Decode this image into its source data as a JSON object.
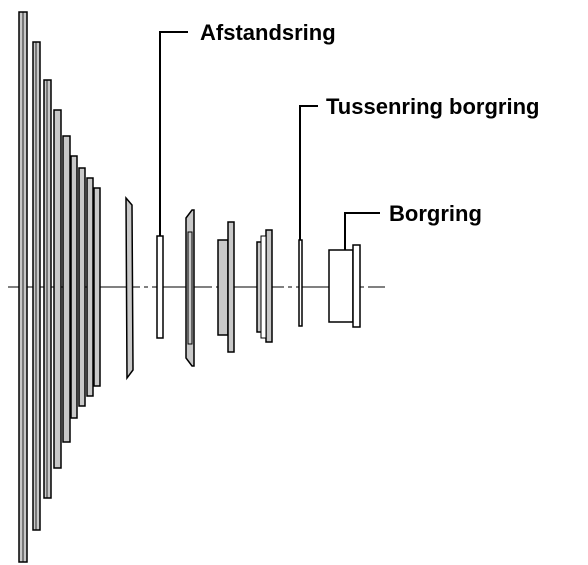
{
  "diagram": {
    "labels": {
      "spacer_ring": "Afstandsring",
      "intermediate_lockring": "Tussenring borgring",
      "lockring": "Borgring"
    },
    "colors": {
      "stroke": "#000000",
      "sprocket_fill": "#c8c8c8",
      "plain_fill": "#ffffff",
      "background": "#ffffff"
    }
  }
}
